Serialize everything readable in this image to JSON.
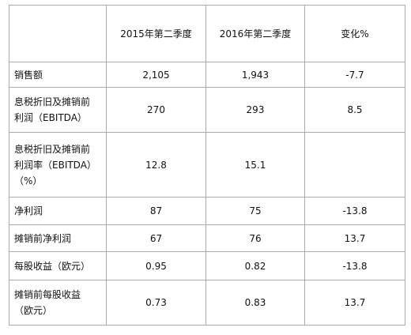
{
  "table": {
    "headers": [
      "",
      "2015年第二季度",
      "2016年第二季度",
      "变化%"
    ],
    "rows": [
      {
        "label": [
          "销售额"
        ],
        "q2_2015": "2,105",
        "q2_2016": "1,943",
        "change": "-7.7"
      },
      {
        "label": [
          "息税折旧及摊销前",
          "利润（EBITDA）"
        ],
        "q2_2015": "270",
        "q2_2016": "293",
        "change": "8.5"
      },
      {
        "label": [
          "息税折旧及摊销前",
          "利润率（EBITDA）",
          "（%）"
        ],
        "q2_2015": "12.8",
        "q2_2016": "15.1",
        "change": ""
      },
      {
        "label": [
          "净利润"
        ],
        "q2_2015": "87",
        "q2_2016": "75",
        "change": "-13.8"
      },
      {
        "label": [
          "摊销前净利润"
        ],
        "q2_2015": "67",
        "q2_2016": "76",
        "change": "13.7"
      },
      {
        "label": [
          "每股收益（欧元）"
        ],
        "q2_2015": "0.95",
        "q2_2016": "0.82",
        "change": "-13.8"
      },
      {
        "label": [
          "摊销前每股收益",
          "（欧元）"
        ],
        "q2_2015": "0.73",
        "q2_2016": "0.83",
        "change": "13.7"
      }
    ]
  }
}
